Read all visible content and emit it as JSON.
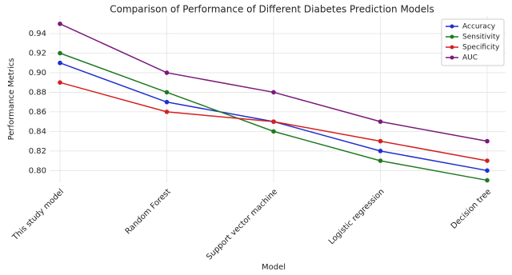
{
  "chart_data": {
    "type": "line",
    "title": "Comparison of Performance of Different Diabetes Prediction Models",
    "x_label": "Model",
    "y_label": "Performance Metrics",
    "categories": [
      "This study model",
      "Random Forest",
      "Support vector machine",
      "Logistic regression",
      "Decision tree"
    ],
    "series": [
      {
        "name": "Accuracy",
        "color": "#1f2fd0",
        "values": [
          0.91,
          0.87,
          0.85,
          0.82,
          0.8
        ]
      },
      {
        "name": "Sensitivity",
        "color": "#1e7a1e",
        "values": [
          0.92,
          0.88,
          0.84,
          0.81,
          0.79
        ]
      },
      {
        "name": "Specificity",
        "color": "#d42020",
        "values": [
          0.89,
          0.86,
          0.85,
          0.83,
          0.81
        ]
      },
      {
        "name": "AUC",
        "color": "#7a1a7a",
        "values": [
          0.95,
          0.9,
          0.88,
          0.85,
          0.83
        ]
      }
    ],
    "ylim": [
      0.788,
      0.958
    ],
    "yticks": [
      {
        "value": 0.8,
        "label": "0.80"
      },
      0.82,
      0.84,
      0.86,
      0.88,
      {
        "value": 0.9,
        "label": "0.90"
      },
      0.92,
      0.94
    ],
    "grid": true,
    "legend": "upper right"
  }
}
